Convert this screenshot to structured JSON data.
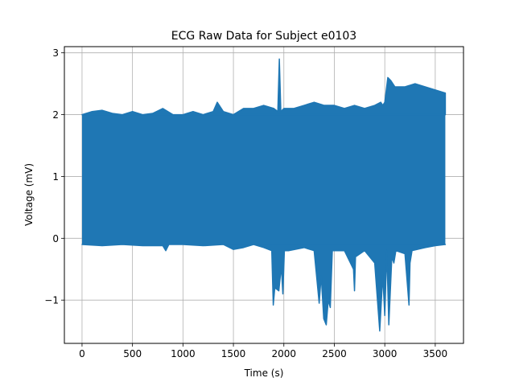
{
  "chart_data": {
    "type": "line",
    "title": "ECG Raw Data for Subject e0103",
    "xlabel": "Time (s)",
    "ylabel": "Voltage (mV)",
    "xlim": [
      -175,
      3780
    ],
    "ylim": [
      -1.7,
      3.1
    ],
    "xticks": [
      0,
      500,
      1000,
      1500,
      2000,
      2500,
      3000,
      3500
    ],
    "xtick_labels": [
      "0",
      "500",
      "1000",
      "1500",
      "2000",
      "2500",
      "3000",
      "3500"
    ],
    "yticks": [
      -1,
      0,
      1,
      2,
      3
    ],
    "ytick_labels": [
      "−1",
      "0",
      "1",
      "2",
      "3"
    ],
    "grid": true,
    "legend": "none",
    "series": [
      {
        "color": "#1f77b4",
        "x_range": [
          0,
          3600
        ],
        "upper_envelope": {
          "x": [
            0,
            100,
            200,
            300,
            400,
            500,
            600,
            700,
            800,
            900,
            1000,
            1100,
            1200,
            1300,
            1340,
            1400,
            1500,
            1600,
            1700,
            1800,
            1900,
            1940,
            1955,
            1970,
            2000,
            2100,
            2200,
            2300,
            2400,
            2500,
            2600,
            2700,
            2800,
            2900,
            2960,
            2980,
            3000,
            3030,
            3060,
            3100,
            3200,
            3300,
            3400,
            3500,
            3600
          ],
          "y": [
            2.0,
            2.05,
            2.07,
            2.02,
            2.0,
            2.05,
            2.0,
            2.02,
            2.1,
            2.0,
            2.0,
            2.05,
            2.0,
            2.05,
            2.2,
            2.05,
            2.0,
            2.1,
            2.1,
            2.15,
            2.1,
            2.05,
            2.9,
            2.05,
            2.1,
            2.1,
            2.15,
            2.2,
            2.15,
            2.15,
            2.1,
            2.15,
            2.1,
            2.15,
            2.2,
            2.15,
            2.2,
            2.6,
            2.55,
            2.45,
            2.45,
            2.5,
            2.45,
            2.4,
            2.35
          ]
        },
        "lower_envelope": {
          "x": [
            0,
            200,
            400,
            600,
            800,
            830,
            860,
            1000,
            1200,
            1400,
            1500,
            1600,
            1700,
            1800,
            1880,
            1895,
            1910,
            1950,
            1975,
            1990,
            2005,
            2050,
            2200,
            2300,
            2350,
            2370,
            2395,
            2420,
            2440,
            2460,
            2480,
            2500,
            2600,
            2690,
            2700,
            2710,
            2800,
            2900,
            2950,
            2980,
            3000,
            3020,
            3040,
            3070,
            3090,
            3110,
            3200,
            3240,
            3250,
            3270,
            3400,
            3500,
            3600
          ],
          "y": [
            -0.1,
            -0.12,
            -0.1,
            -0.12,
            -0.12,
            -0.2,
            -0.1,
            -0.1,
            -0.12,
            -0.1,
            -0.18,
            -0.15,
            -0.1,
            -0.15,
            -0.2,
            -1.08,
            -0.8,
            -0.85,
            -0.45,
            -0.9,
            -0.2,
            -0.2,
            -0.15,
            -0.2,
            -1.05,
            -0.6,
            -1.3,
            -1.4,
            -1.0,
            -1.12,
            -0.2,
            -0.2,
            -0.2,
            -0.5,
            -0.85,
            -0.3,
            -0.2,
            -0.4,
            -1.5,
            -0.6,
            -1.25,
            -0.2,
            -1.4,
            -0.3,
            -0.4,
            -0.2,
            -0.25,
            -1.08,
            -0.4,
            -0.2,
            -0.15,
            -0.12,
            -0.1
          ]
        },
        "dense_band": [
          -0.1,
          2.0
        ]
      }
    ]
  }
}
